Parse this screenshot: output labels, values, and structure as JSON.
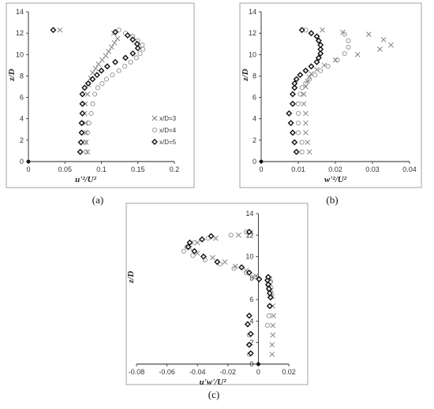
{
  "chart_data": [
    {
      "type": "scatter",
      "panel_label": "(a)",
      "xlabel": "u'²/U²",
      "ylabel": "z/D",
      "xlim": [
        0,
        0.2
      ],
      "ylim": [
        0,
        14
      ],
      "xticks": [
        "0",
        "0.05",
        "0.1",
        "0.15",
        "0.2"
      ],
      "yticks": [
        "0",
        "2",
        "4",
        "6",
        "8",
        "10",
        "12",
        "14"
      ],
      "grid": false,
      "legend_position": "right",
      "series": [
        {
          "name": "x/D=3",
          "marker": "x",
          "x": [
            0.081,
            0.079,
            0.079,
            0.078,
            0.077,
            0.078,
            0.081,
            0.082,
            0.085,
            0.088,
            0.092,
            0.096,
            0.101,
            0.106,
            0.11,
            0.114,
            0.118,
            0.122,
            0.117,
            0.043
          ],
          "y": [
            0.9,
            1.8,
            2.7,
            3.6,
            4.5,
            5.4,
            6.3,
            7.2,
            7.8,
            8.3,
            8.7,
            9.1,
            9.5,
            9.9,
            10.3,
            10.7,
            11.1,
            11.5,
            12.0,
            12.3
          ]
        },
        {
          "name": "x/D=4",
          "marker": "circle",
          "x": [
            0.079,
            0.078,
            0.081,
            0.083,
            0.086,
            0.088,
            0.091,
            0.095,
            0.101,
            0.107,
            0.115,
            0.124,
            0.132,
            0.14,
            0.148,
            0.153,
            0.157,
            0.156,
            0.15,
            0.143,
            0.133,
            0.124
          ],
          "y": [
            0.9,
            1.8,
            2.7,
            3.6,
            4.5,
            5.4,
            6.3,
            6.9,
            7.3,
            7.7,
            8.1,
            8.5,
            8.9,
            9.3,
            9.7,
            10.1,
            10.5,
            10.9,
            11.3,
            11.7,
            12.0,
            12.3
          ]
        },
        {
          "name": "x/D=5",
          "marker": "diamond",
          "x": [
            0.071,
            0.072,
            0.073,
            0.073,
            0.074,
            0.074,
            0.074,
            0.077,
            0.082,
            0.088,
            0.094,
            0.1,
            0.108,
            0.119,
            0.133,
            0.143,
            0.15,
            0.149,
            0.143,
            0.136,
            0.119,
            0.034
          ],
          "y": [
            0.9,
            1.8,
            2.7,
            3.6,
            4.5,
            5.4,
            6.3,
            6.9,
            7.3,
            7.7,
            8.1,
            8.5,
            8.9,
            9.3,
            9.7,
            10.1,
            10.6,
            11.0,
            11.4,
            11.8,
            12.1,
            12.3
          ]
        }
      ]
    },
    {
      "type": "scatter",
      "panel_label": "(b)",
      "xlabel": "w'²/U²",
      "ylabel": "z/D",
      "xlim": [
        0,
        0.04
      ],
      "ylim": [
        0,
        14
      ],
      "xticks": [
        "0",
        "0.01",
        "0.02",
        "0.03",
        "0.04"
      ],
      "yticks": [
        "0",
        "2",
        "4",
        "6",
        "8",
        "10",
        "12",
        "14"
      ],
      "grid": false,
      "series": [
        {
          "name": "x/D=3",
          "marker": "x",
          "x": [
            0.013,
            0.0125,
            0.012,
            0.012,
            0.012,
            0.0115,
            0.0115,
            0.012,
            0.0125,
            0.013,
            0.0135,
            0.015,
            0.017,
            0.02,
            0.026,
            0.032,
            0.035,
            0.033,
            0.029,
            0.022,
            0.0165
          ],
          "y": [
            0.9,
            1.8,
            2.7,
            3.6,
            4.5,
            5.4,
            6.3,
            7.0,
            7.5,
            7.9,
            8.2,
            8.6,
            9.0,
            9.5,
            10.0,
            10.5,
            10.9,
            11.4,
            11.9,
            12.1,
            12.3
          ]
        },
        {
          "name": "x/D=4",
          "marker": "circle",
          "x": [
            0.011,
            0.011,
            0.01,
            0.01,
            0.01,
            0.01,
            0.0105,
            0.011,
            0.012,
            0.013,
            0.0145,
            0.016,
            0.018,
            0.0205,
            0.0225,
            0.0235,
            0.0235,
            0.0225,
            0.012
          ],
          "y": [
            0.9,
            1.8,
            2.7,
            3.6,
            4.5,
            5.4,
            6.3,
            6.9,
            7.3,
            7.7,
            8.1,
            8.5,
            8.9,
            9.5,
            10.1,
            10.7,
            11.3,
            11.9,
            12.3
          ]
        },
        {
          "name": "x/D=5",
          "marker": "diamond",
          "x": [
            0.0095,
            0.009,
            0.0085,
            0.008,
            0.0075,
            0.0085,
            0.0085,
            0.009,
            0.009,
            0.0095,
            0.0105,
            0.012,
            0.0135,
            0.015,
            0.0155,
            0.016,
            0.016,
            0.016,
            0.0155,
            0.015,
            0.0135,
            0.011
          ],
          "y": [
            0.9,
            1.8,
            2.7,
            3.6,
            4.5,
            5.4,
            6.3,
            6.9,
            7.3,
            7.7,
            8.1,
            8.5,
            8.9,
            9.3,
            9.7,
            10.1,
            10.5,
            10.9,
            11.3,
            11.7,
            12.0,
            12.3
          ]
        }
      ]
    },
    {
      "type": "scatter",
      "panel_label": "(c)",
      "xlabel": "u'w'/U²",
      "ylabel": "z/D",
      "xlim": [
        -0.08,
        0.02
      ],
      "ylim": [
        0,
        14
      ],
      "xticks": [
        "-0.08",
        "-0.06",
        "-0.04",
        "-0.02",
        "0",
        "0.02"
      ],
      "yticks": [
        "0",
        "2",
        "4",
        "6",
        "8",
        "10",
        "12",
        "14"
      ],
      "grid": false,
      "series": [
        {
          "name": "x/D=3",
          "marker": "x",
          "x": [
            0.009,
            0.009,
            0.0095,
            0.0095,
            0.01,
            0.0095,
            0.009,
            0.0085,
            0.008,
            0.0075,
            -0.0015,
            -0.008,
            -0.015,
            -0.022,
            -0.03,
            -0.04,
            -0.045,
            -0.04,
            -0.028,
            -0.013,
            -0.005
          ],
          "y": [
            0.9,
            1.8,
            2.7,
            3.6,
            4.5,
            5.4,
            6.3,
            6.9,
            7.4,
            7.9,
            8.2,
            8.7,
            9.1,
            9.5,
            9.9,
            10.3,
            10.8,
            11.3,
            11.7,
            12.0,
            12.2
          ]
        },
        {
          "name": "x/D=4",
          "marker": "circle",
          "x": [
            -0.006,
            -0.006,
            -0.006,
            0.006,
            0.007,
            0.0075,
            0.008,
            0.007,
            0.0065,
            0.008,
            -0.002,
            -0.008,
            -0.016,
            -0.025,
            -0.035,
            -0.043,
            -0.049,
            -0.047,
            -0.042,
            -0.033,
            -0.018,
            -0.008
          ],
          "y": [
            0.9,
            1.8,
            2.7,
            3.6,
            4.5,
            5.4,
            6.3,
            6.9,
            7.3,
            7.7,
            8.1,
            8.5,
            8.9,
            9.3,
            9.7,
            10.1,
            10.5,
            10.9,
            11.3,
            11.7,
            12.0,
            12.3
          ]
        },
        {
          "name": "x/D=5",
          "marker": "diamond",
          "x": [
            -0.005,
            -0.006,
            -0.005,
            -0.007,
            -0.006,
            0.0075,
            0.008,
            0.0075,
            0.007,
            0.0065,
            0.006,
            0.0065,
            0.0005,
            -0.006,
            -0.011,
            -0.027,
            -0.036,
            -0.042,
            -0.046,
            -0.045,
            -0.037,
            -0.031,
            -0.006
          ],
          "y": [
            1.0,
            1.8,
            2.8,
            3.7,
            4.5,
            5.4,
            6.2,
            6.6,
            7.0,
            7.4,
            7.8,
            8.1,
            7.9,
            8.5,
            9.0,
            9.5,
            10.0,
            10.5,
            10.9,
            11.3,
            11.6,
            11.9,
            12.3
          ]
        }
      ]
    }
  ]
}
